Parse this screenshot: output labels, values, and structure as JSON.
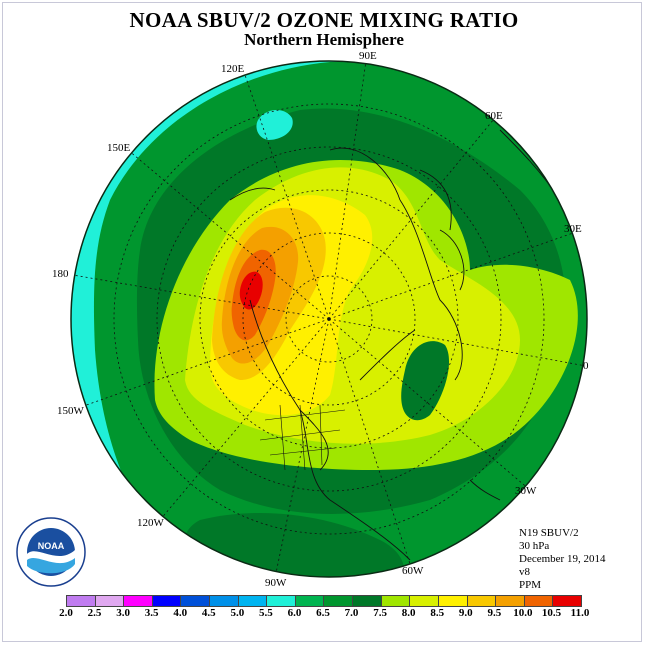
{
  "header": {
    "title": "NOAA SBUV/2 OZONE MIXING RATIO",
    "subtitle": "Northern Hemisphere"
  },
  "map_labels": {
    "lon_90E": "90E",
    "lon_120E": "120E",
    "lon_60E": "60E",
    "lon_150E": "150E",
    "lon_30E": "30E",
    "lon_180": "180",
    "lon_0": "0",
    "lon_150W": "150W",
    "lon_120W": "120W",
    "lon_30W": "30W",
    "lon_90W": "90W",
    "lon_60W": "60W"
  },
  "info": {
    "satellite": "N19 SBUV/2",
    "level": "30 hPa",
    "date": "December 19, 2014",
    "version": "v8",
    "units": "PPM"
  },
  "logo": {
    "text": "NOAA",
    "ring_text": "NATIONAL OCEANIC AND ATMOSPHERIC ADMINISTRATION · U.S. DEPARTMENT OF COMMERCE"
  },
  "colorbar": {
    "ticks": [
      "2.0",
      "2.5",
      "3.0",
      "3.5",
      "4.0",
      "4.5",
      "5.0",
      "5.5",
      "6.0",
      "6.5",
      "7.0",
      "7.5",
      "8.0",
      "8.5",
      "9.0",
      "9.5",
      "10.0",
      "10.5",
      "11.0"
    ],
    "colors": [
      "#c07cf0",
      "#e0a8f0",
      "#ff00ff",
      "#0000ff",
      "#0050d8",
      "#0090e8",
      "#00b4f0",
      "#20f0d8",
      "#00b450",
      "#00962e",
      "#007828",
      "#a0e600",
      "#d8f000",
      "#fff000",
      "#f8c800",
      "#f4a000",
      "#f06400",
      "#e80000",
      "#8b4a3a"
    ]
  },
  "field_colors": {
    "ring_cyan": "#20f0d8",
    "green_65": "#00962e",
    "green_70": "#007828",
    "green_75": "#a0e600",
    "yellowgreen_80": "#d8f000",
    "yellow_85": "#fff000",
    "orange_90": "#f8c800",
    "orange_95": "#f4a000",
    "orange_100": "#f06400",
    "red_105": "#e80000"
  }
}
